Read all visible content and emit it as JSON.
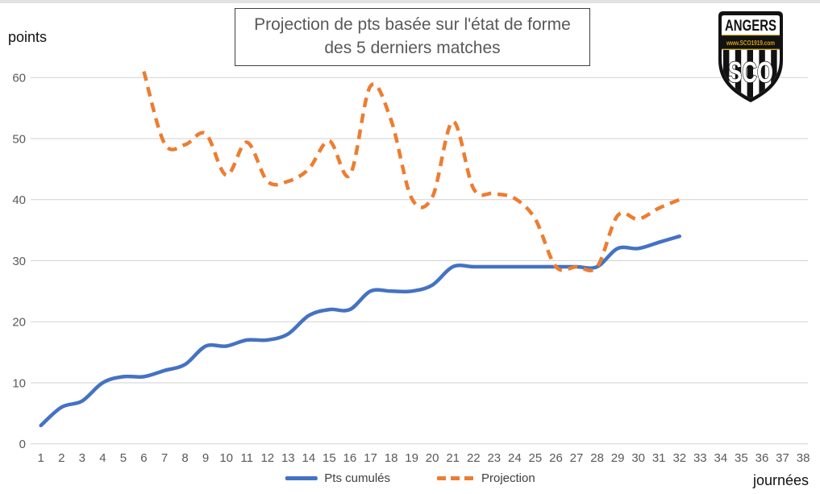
{
  "title": {
    "line1": "Projection de pts basée sur l'état de forme",
    "line2": "des 5 derniers matches"
  },
  "labels": {
    "y_axis": "points",
    "x_axis": "journées"
  },
  "legend": [
    {
      "label": "Pts cumulés",
      "color": "#4472C4",
      "style": "solid"
    },
    {
      "label": "Projection",
      "color": "#ED7D31",
      "style": "dashed"
    }
  ],
  "logo": {
    "team": "ANGERS",
    "banner": "www.SCO1919.com",
    "monogram": "SCO"
  },
  "colors": {
    "pts_cumules": "#4472C4",
    "projection": "#ED7D31",
    "gridline": "#d2d2d2",
    "tick_text": "#595959",
    "logo_gold": "#C9A227"
  },
  "chart_data": {
    "type": "line",
    "title": "Projection de pts basée sur l'état de forme des 5 derniers matches",
    "xlabel": "journées",
    "ylabel": "points",
    "xlim": [
      1,
      38
    ],
    "ylim": [
      0,
      60
    ],
    "x_ticks": [
      1,
      2,
      3,
      4,
      5,
      6,
      7,
      8,
      9,
      10,
      11,
      12,
      13,
      14,
      15,
      16,
      17,
      18,
      19,
      20,
      21,
      22,
      23,
      24,
      25,
      26,
      27,
      28,
      29,
      30,
      31,
      32,
      33,
      34,
      35,
      36,
      37,
      38
    ],
    "y_ticks": [
      0,
      10,
      20,
      30,
      40,
      50,
      60
    ],
    "grid": true,
    "legend_position": "bottom",
    "line_style": "smooth",
    "series": [
      {
        "name": "Pts cumulés",
        "color": "#4472C4",
        "style": "solid",
        "x_start": 1,
        "values": [
          3,
          6,
          7,
          10,
          11,
          11,
          12,
          13,
          16,
          16,
          17,
          17,
          18,
          21,
          22,
          22,
          25,
          25,
          25,
          26,
          29,
          29,
          29,
          29,
          29,
          29,
          29,
          29,
          32,
          32,
          33,
          34
        ]
      },
      {
        "name": "Projection",
        "color": "#ED7D31",
        "style": "dashed",
        "x_start": 6,
        "values": [
          61,
          49.2,
          49,
          50.8,
          44,
          49.4,
          43,
          43,
          45,
          49.6,
          44,
          58.6,
          53,
          40.2,
          40.4,
          52.8,
          41.8,
          41,
          40.2,
          36.8,
          29,
          29,
          29,
          37.4,
          36.8,
          38.6,
          40
        ]
      }
    ]
  }
}
